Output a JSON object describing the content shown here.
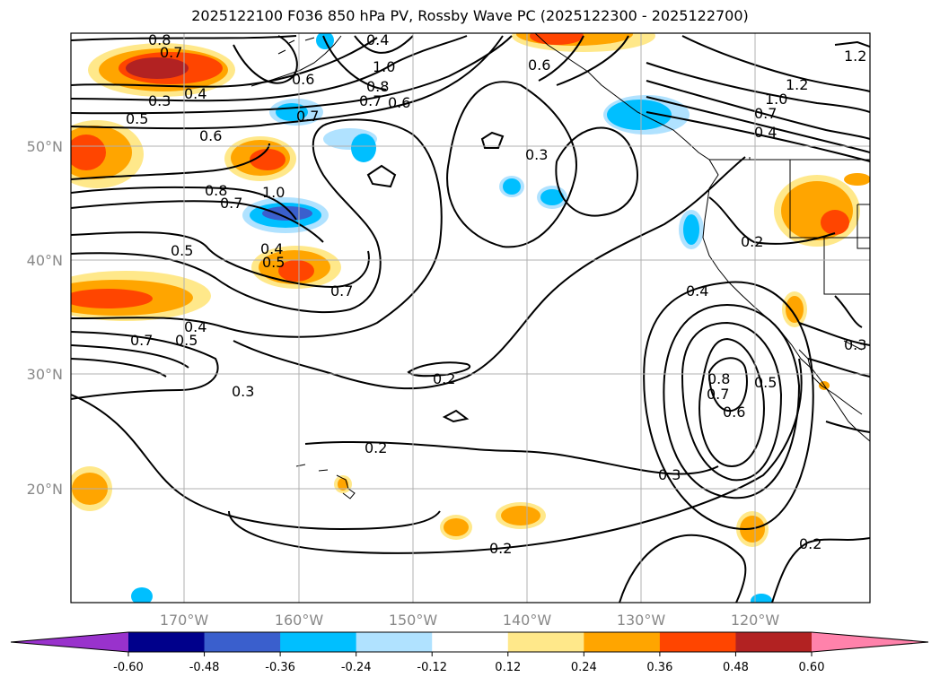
{
  "title": "2025122100 F036 850 hPa PV, Rossby Wave PC (2025122300 - 2025122700)",
  "lon_ticks": [
    "170°W",
    "160°W",
    "150°W",
    "140°W",
    "130°W",
    "120°W"
  ],
  "lat_ticks": [
    "50°N",
    "40°N",
    "30°N",
    "20°N"
  ],
  "colorbar": {
    "ticks": [
      "-0.60",
      "-0.48",
      "-0.36",
      "-0.24",
      "-0.12",
      "0.12",
      "0.24",
      "0.36",
      "0.48",
      "0.60"
    ],
    "colors": [
      "#9932cc",
      "#00008b",
      "#3a5fcd",
      "#00bfff",
      "#b0e2ff",
      "#ffffff",
      "#ffe88a",
      "#ffa500",
      "#ff4500",
      "#b22222",
      "#ff82ab"
    ]
  },
  "contour_labels": [
    "0.8",
    "0.7",
    "0.3",
    "0.4",
    "0.5",
    "0.6",
    "0.6",
    "0.7",
    "0.8",
    "0.4",
    "1.0",
    "0.6",
    "0.7",
    "0.8",
    "0.7",
    "1.0",
    "0.5",
    "0.4",
    "0.5",
    "0.7",
    "0.3",
    "0.3",
    "0.6",
    "0.5",
    "0.4",
    "0.7",
    "0.2",
    "0.2",
    "0.3",
    "0.2",
    "0.2",
    "0.4",
    "0.8",
    "0.7",
    "0.6",
    "0.5",
    "0.3",
    "1.0",
    "1.2",
    "1.2",
    "0.7",
    "0.4",
    "0.2"
  ]
}
